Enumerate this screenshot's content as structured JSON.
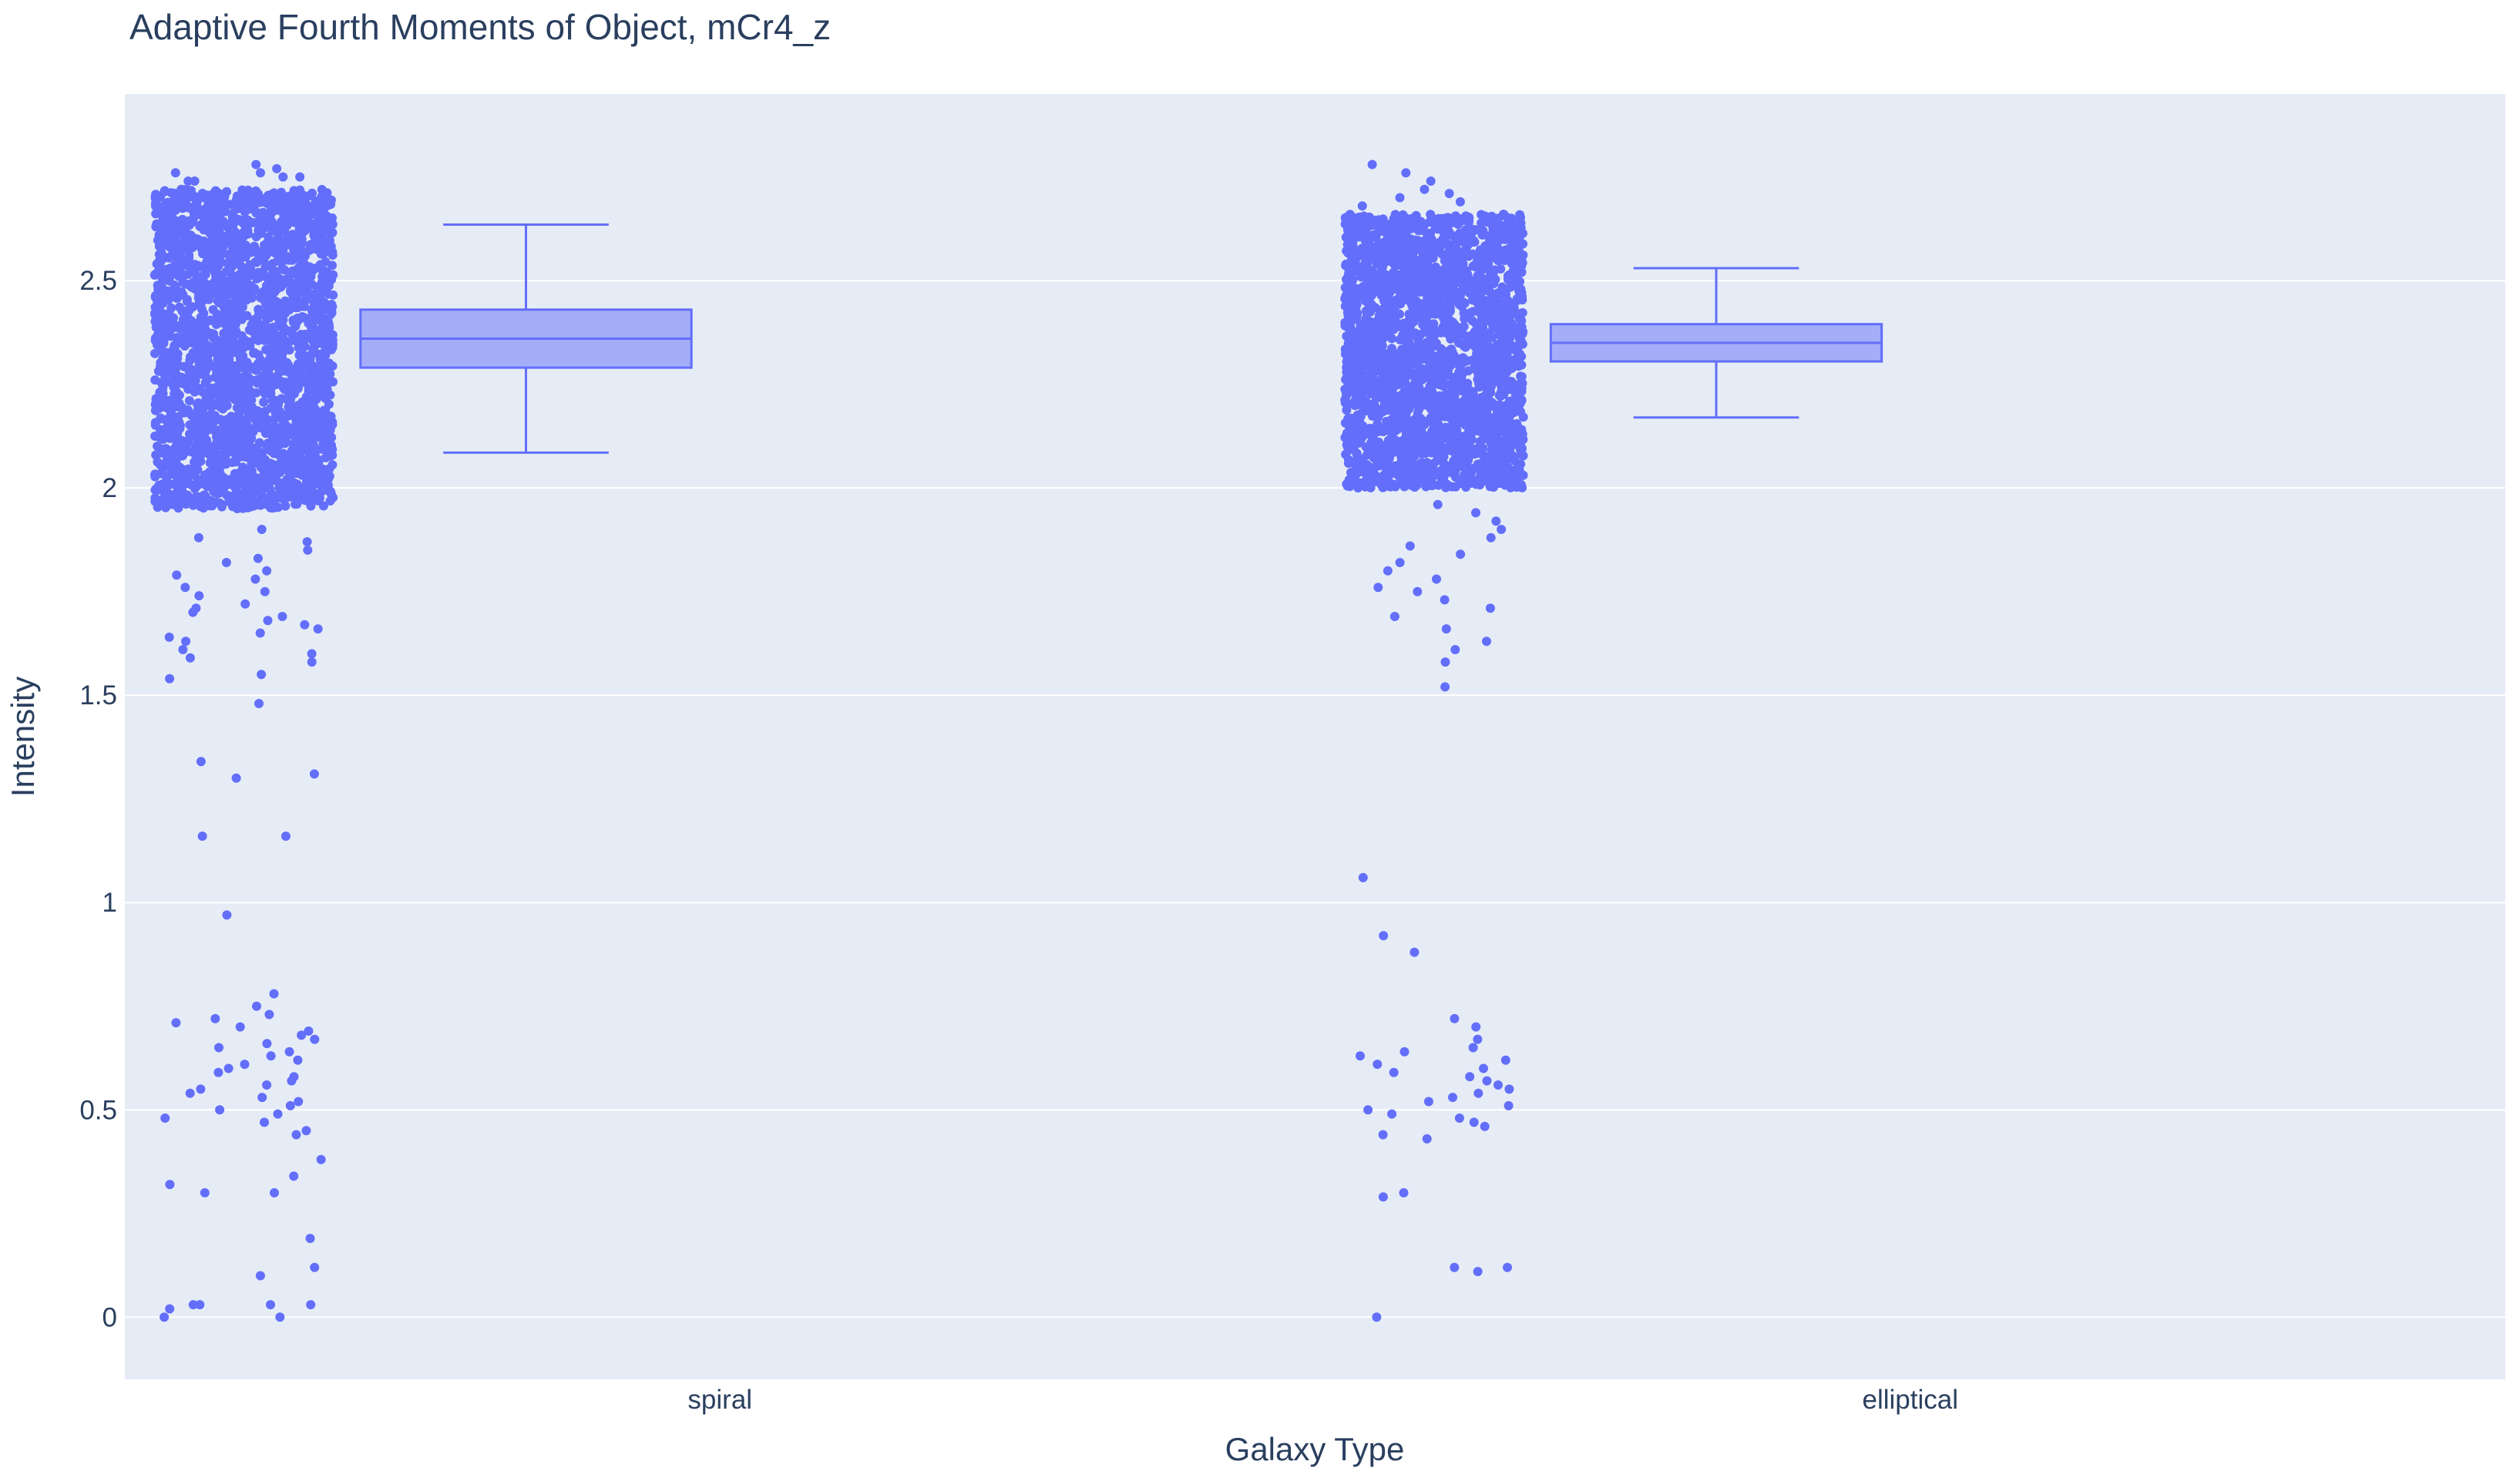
{
  "chart_data": {
    "type": "box",
    "title": "Adaptive Fourth Moments of Object, mCr4_z",
    "xlabel": "Galaxy Type",
    "ylabel": "Intensity",
    "ylim": [
      -0.15,
      2.95
    ],
    "y_ticks": [
      0,
      0.5,
      1,
      1.5,
      2,
      2.5
    ],
    "y_tick_labels": [
      "0",
      "0.5",
      "1",
      "1.5",
      "2",
      "2.5"
    ],
    "categories": [
      "spiral",
      "elliptical"
    ],
    "grid": true,
    "legend": "none",
    "series": [
      {
        "category": "spiral",
        "box": {
          "lower_fence": 2.085,
          "q1": 2.29,
          "median": 2.36,
          "q3": 2.43,
          "upper_fence": 2.635
        },
        "points": {
          "dense_range": [
            1.95,
            2.72
          ],
          "outliers": [
            2.78,
            2.77,
            2.76,
            2.76,
            2.75,
            2.75,
            2.74,
            2.74,
            1.9,
            1.88,
            1.87,
            1.85,
            1.83,
            1.82,
            1.8,
            1.79,
            1.78,
            1.76,
            1.75,
            1.74,
            1.72,
            1.71,
            1.7,
            1.69,
            1.68,
            1.67,
            1.66,
            1.65,
            1.64,
            1.63,
            1.61,
            1.6,
            1.59,
            1.58,
            1.55,
            1.54,
            1.48,
            1.34,
            1.31,
            1.3,
            1.16,
            1.16,
            0.97,
            0.78,
            0.75,
            0.73,
            0.72,
            0.71,
            0.7,
            0.69,
            0.68,
            0.67,
            0.66,
            0.65,
            0.64,
            0.63,
            0.62,
            0.61,
            0.6,
            0.59,
            0.58,
            0.57,
            0.56,
            0.55,
            0.54,
            0.53,
            0.52,
            0.51,
            0.5,
            0.49,
            0.48,
            0.47,
            0.45,
            0.44,
            0.38,
            0.34,
            0.32,
            0.3,
            0.3,
            0.19,
            0.12,
            0.1,
            0.03,
            0.03,
            0.03,
            0.03,
            0.02,
            0.0,
            0.0
          ]
        }
      },
      {
        "category": "elliptical",
        "box": {
          "lower_fence": 2.17,
          "q1": 2.305,
          "median": 2.35,
          "q3": 2.395,
          "upper_fence": 2.53
        },
        "points": {
          "dense_range": [
            2.0,
            2.66
          ],
          "outliers": [
            2.78,
            2.76,
            2.74,
            2.72,
            2.71,
            2.7,
            2.69,
            2.68,
            1.96,
            1.94,
            1.92,
            1.9,
            1.88,
            1.86,
            1.84,
            1.82,
            1.8,
            1.78,
            1.76,
            1.75,
            1.73,
            1.71,
            1.69,
            1.66,
            1.63,
            1.61,
            1.58,
            1.52,
            1.06,
            0.92,
            0.88,
            0.72,
            0.7,
            0.67,
            0.65,
            0.64,
            0.63,
            0.62,
            0.61,
            0.6,
            0.59,
            0.58,
            0.57,
            0.56,
            0.55,
            0.54,
            0.53,
            0.52,
            0.51,
            0.5,
            0.49,
            0.48,
            0.47,
            0.46,
            0.44,
            0.43,
            0.3,
            0.29,
            0.12,
            0.12,
            0.11,
            0.0
          ]
        }
      }
    ],
    "colors": {
      "marker": "#636efa",
      "box_fill": "rgba(99,110,250,0.5)",
      "plot_bg": "#e5ecf6",
      "grid": "#ffffff",
      "text": "#2a3f5f"
    }
  }
}
